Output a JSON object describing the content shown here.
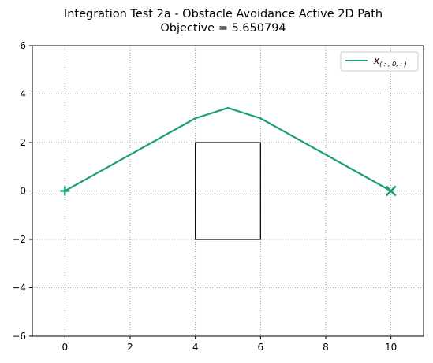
{
  "chart_data": {
    "type": "line",
    "title": [
      "Integration Test 2a - Obstacle Avoidance Active 2D Path",
      "Objective = 5.650794"
    ],
    "xlabel": "",
    "ylabel": "",
    "xlim": [
      -1,
      11
    ],
    "ylim": [
      -6,
      6
    ],
    "xticks": [
      0,
      2,
      4,
      6,
      8,
      10
    ],
    "yticks": [
      -6,
      -4,
      -2,
      0,
      2,
      4,
      6
    ],
    "grid": true,
    "grid_style": "dotted",
    "legend_placement": "top-right",
    "series": [
      {
        "name": "x",
        "name_subscript": "( : , 0, : )",
        "color": "#1b9e77",
        "x": [
          0,
          4,
          5,
          6,
          10
        ],
        "y": [
          0,
          3.0,
          3.43,
          3.0,
          0
        ]
      }
    ],
    "markers": [
      {
        "symbol": "plus",
        "x": 0,
        "y": 0,
        "color": "#1b9e77"
      },
      {
        "symbol": "x",
        "x": 10,
        "y": 0,
        "color": "#1b9e77"
      }
    ],
    "obstacle": {
      "x": [
        4,
        6
      ],
      "y": [
        -2,
        2
      ],
      "color": "#000000"
    }
  }
}
